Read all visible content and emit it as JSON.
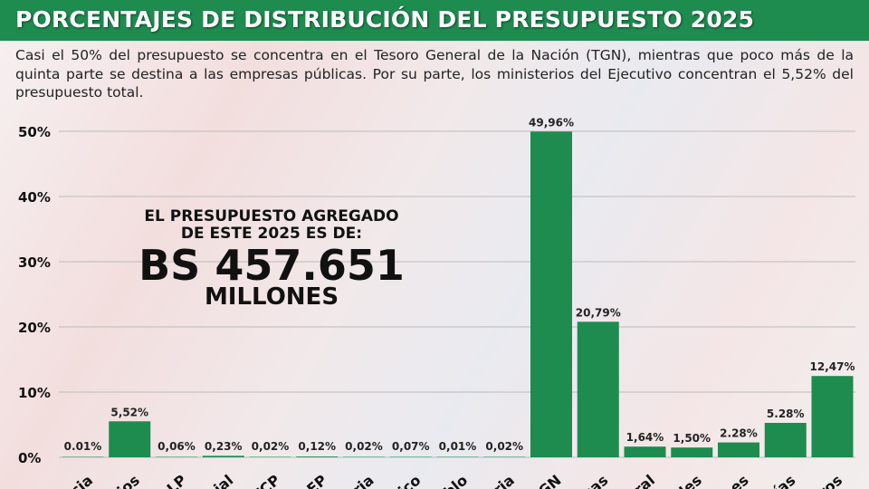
{
  "header": {
    "title": "PORCENTAJES DE DISTRIBUCIÓN DEL PRESUPUESTO 2025"
  },
  "subtitle": "Casi el 50% del presupuesto se concentra en el Tesoro General de la Nación (TGN), mientras que poco más de la quinta parte se destina a las empresas públicas. Por su parte, los ministerios del Ejecutivo concentran el 5,52% del presupuesto total.",
  "annotation": {
    "line1": "EL PRESUPUESTO AGREGADO",
    "line2": "DE ESTE 2025 ES DE:",
    "amount": "BS 457.651",
    "unit": "MILLONES"
  },
  "colors": {
    "bar": "#1e8b4f",
    "header": "#1e8b4f"
  },
  "chart_data": {
    "type": "bar",
    "categories": [
      "cia",
      "rios",
      "ALP",
      "cial",
      "TCP",
      "OEP",
      "ria",
      "lico",
      "blo",
      "uria",
      "TGN",
      "cas",
      "tral",
      "des",
      "nes",
      "ías",
      "ros"
    ],
    "values": [
      0.01,
      5.52,
      0.06,
      0.23,
      0.02,
      0.12,
      0.02,
      0.07,
      0.01,
      0.02,
      49.96,
      20.79,
      1.64,
      1.5,
      2.28,
      5.28,
      12.47
    ],
    "data_labels": [
      "0.01%",
      "5,52%",
      "0,06%",
      "0,23%",
      "0,02%",
      "0,12%",
      "0,02%",
      "0,07%",
      "0,01%",
      "0,02%",
      "49,96%",
      "20,79%",
      "1,64%",
      "1,50%",
      "2.28%",
      "5.28%",
      "12,47%"
    ],
    "yticks": [
      "0%",
      "10%",
      "20%",
      "30%",
      "40%",
      "50%"
    ],
    "ylim": [
      0,
      50
    ],
    "grid": true,
    "legend": "none"
  }
}
